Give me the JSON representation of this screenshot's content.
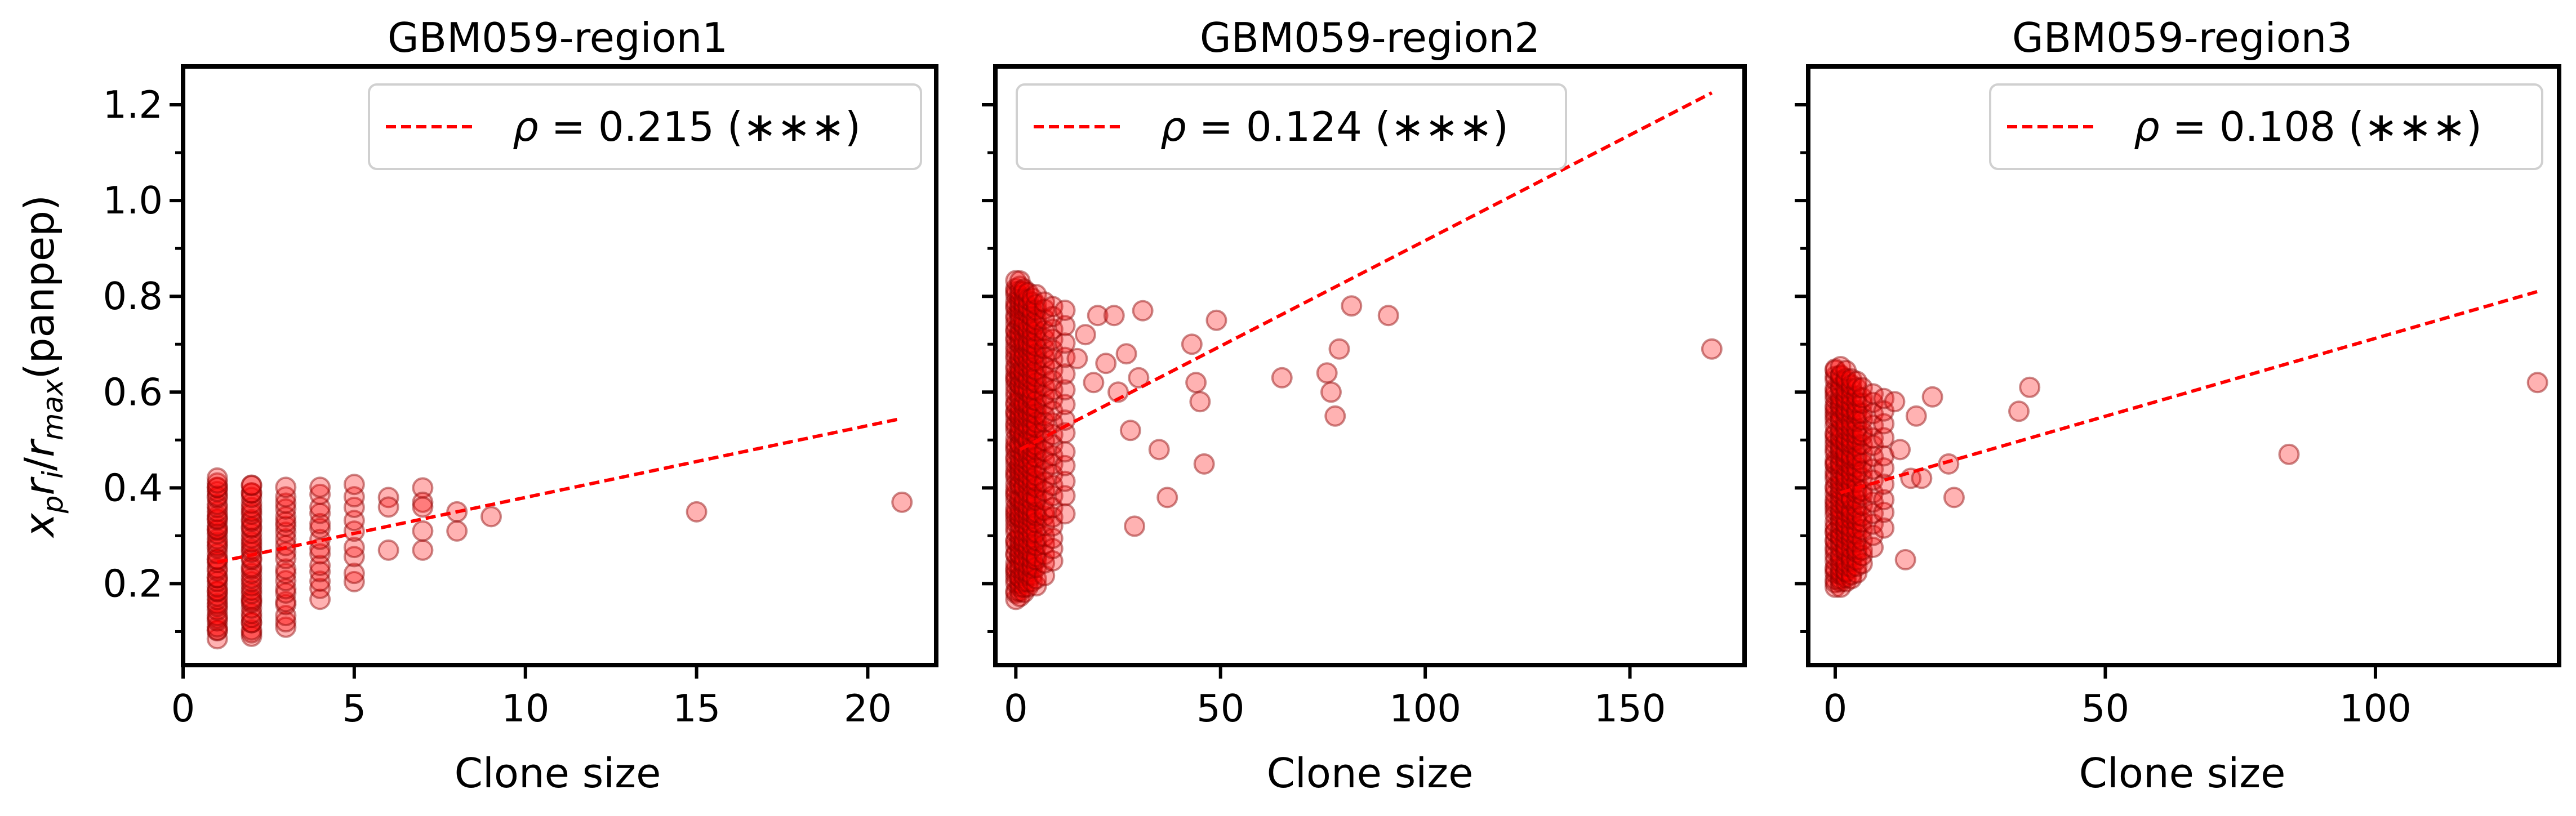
{
  "chart_data": [
    {
      "type": "scatter",
      "title": "GBM059-region1",
      "xlabel": "Clone size",
      "ylabel": "x_p r_i / r_max (panpep)",
      "xlim": [
        0,
        22
      ],
      "ylim": [
        0.03,
        1.28
      ],
      "xticks": [
        0,
        5,
        10,
        15,
        20
      ],
      "xtick_labels": [
        "0",
        "5",
        "10",
        "15",
        "20"
      ],
      "yticks": [
        0.2,
        0.4,
        0.6,
        0.8,
        1.0,
        1.2
      ],
      "ytick_labels": [
        "0.2",
        "0.4",
        "0.6",
        "0.8",
        "1.0",
        "1.2"
      ],
      "color": "#ff0000",
      "legend": {
        "position": "top-right",
        "rho": "0.215",
        "significance": "(∗∗∗)"
      },
      "fit_line": {
        "x": [
          1,
          21
        ],
        "y": [
          0.245,
          0.545
        ]
      },
      "columns": [
        {
          "x": 1,
          "ymin": 0.09,
          "ymax": 0.42,
          "n": 45
        },
        {
          "x": 2,
          "ymin": 0.09,
          "ymax": 0.41,
          "n": 40
        },
        {
          "x": 3,
          "ymin": 0.11,
          "ymax": 0.4,
          "n": 22
        },
        {
          "x": 4,
          "ymin": 0.17,
          "ymax": 0.4,
          "n": 14
        },
        {
          "x": 5,
          "ymin": 0.2,
          "ymax": 0.41,
          "n": 9
        }
      ],
      "points": [
        {
          "x": 6,
          "y": 0.38
        },
        {
          "x": 6,
          "y": 0.36
        },
        {
          "x": 6,
          "y": 0.27
        },
        {
          "x": 7,
          "y": 0.4
        },
        {
          "x": 7,
          "y": 0.37
        },
        {
          "x": 7,
          "y": 0.36
        },
        {
          "x": 7,
          "y": 0.31
        },
        {
          "x": 7,
          "y": 0.27
        },
        {
          "x": 8,
          "y": 0.35
        },
        {
          "x": 8,
          "y": 0.31
        },
        {
          "x": 9,
          "y": 0.34
        },
        {
          "x": 15,
          "y": 0.35
        },
        {
          "x": 21,
          "y": 0.37
        }
      ]
    },
    {
      "type": "scatter",
      "title": "GBM059-region2",
      "xlabel": "Clone size",
      "xlim": [
        -5,
        178
      ],
      "ylim": [
        0.03,
        1.28
      ],
      "xticks": [
        0,
        50,
        100,
        150
      ],
      "xtick_labels": [
        "0",
        "50",
        "100",
        "150"
      ],
      "yticks": [
        0.2,
        0.4,
        0.6,
        0.8,
        1.0,
        1.2
      ],
      "color": "#ff0000",
      "legend": {
        "position": "top-left",
        "rho": "0.124",
        "significance": "(∗∗∗)"
      },
      "fit_line": {
        "x": [
          1,
          170
        ],
        "y": [
          0.48,
          1.225
        ]
      },
      "columns": [
        {
          "x": 0,
          "ymin": 0.17,
          "ymax": 0.83,
          "n": 70
        },
        {
          "x": 1,
          "ymin": 0.17,
          "ymax": 0.83,
          "n": 70
        },
        {
          "x": 2,
          "ymin": 0.18,
          "ymax": 0.82,
          "n": 60
        },
        {
          "x": 3,
          "ymin": 0.19,
          "ymax": 0.81,
          "n": 50
        },
        {
          "x": 4,
          "ymin": 0.2,
          "ymax": 0.8,
          "n": 45
        },
        {
          "x": 5,
          "ymin": 0.2,
          "ymax": 0.8,
          "n": 40
        },
        {
          "x": 7,
          "ymin": 0.22,
          "ymax": 0.79,
          "n": 30
        },
        {
          "x": 9,
          "ymin": 0.25,
          "ymax": 0.78,
          "n": 25
        },
        {
          "x": 12,
          "ymin": 0.35,
          "ymax": 0.77,
          "n": 14
        }
      ],
      "points": [
        {
          "x": 15,
          "y": 0.67
        },
        {
          "x": 17,
          "y": 0.72
        },
        {
          "x": 19,
          "y": 0.62
        },
        {
          "x": 20,
          "y": 0.76
        },
        {
          "x": 22,
          "y": 0.66
        },
        {
          "x": 24,
          "y": 0.76
        },
        {
          "x": 25,
          "y": 0.6
        },
        {
          "x": 27,
          "y": 0.68
        },
        {
          "x": 28,
          "y": 0.52
        },
        {
          "x": 29,
          "y": 0.32
        },
        {
          "x": 30,
          "y": 0.63
        },
        {
          "x": 31,
          "y": 0.77
        },
        {
          "x": 35,
          "y": 0.48
        },
        {
          "x": 37,
          "y": 0.38
        },
        {
          "x": 43,
          "y": 0.7
        },
        {
          "x": 44,
          "y": 0.62
        },
        {
          "x": 45,
          "y": 0.58
        },
        {
          "x": 46,
          "y": 0.45
        },
        {
          "x": 49,
          "y": 0.75
        },
        {
          "x": 65,
          "y": 0.63
        },
        {
          "x": 76,
          "y": 0.64
        },
        {
          "x": 77,
          "y": 0.6
        },
        {
          "x": 78,
          "y": 0.55
        },
        {
          "x": 79,
          "y": 0.69
        },
        {
          "x": 82,
          "y": 0.78
        },
        {
          "x": 91,
          "y": 0.76
        },
        {
          "x": 170,
          "y": 0.69
        }
      ]
    },
    {
      "type": "scatter",
      "title": "GBM059-region3",
      "xlabel": "Clone size",
      "xlim": [
        -5,
        134
      ],
      "ylim": [
        0.03,
        1.28
      ],
      "xticks": [
        0,
        50,
        100
      ],
      "xtick_labels": [
        "0",
        "50",
        "100"
      ],
      "yticks": [
        0.2,
        0.4,
        0.6,
        0.8,
        1.0,
        1.2
      ],
      "color": "#ff0000",
      "legend": {
        "position": "top-right",
        "rho": "0.108",
        "significance": "(∗∗∗)"
      },
      "fit_line": {
        "x": [
          1,
          130
        ],
        "y": [
          0.39,
          0.81
        ]
      },
      "columns": [
        {
          "x": 0,
          "ymin": 0.19,
          "ymax": 0.65,
          "n": 50
        },
        {
          "x": 1,
          "ymin": 0.19,
          "ymax": 0.65,
          "n": 50
        },
        {
          "x": 2,
          "ymin": 0.2,
          "ymax": 0.64,
          "n": 45
        },
        {
          "x": 3,
          "ymin": 0.21,
          "ymax": 0.63,
          "n": 35
        },
        {
          "x": 4,
          "ymin": 0.22,
          "ymax": 0.62,
          "n": 30
        },
        {
          "x": 5,
          "ymin": 0.24,
          "ymax": 0.61,
          "n": 22
        },
        {
          "x": 7,
          "ymin": 0.28,
          "ymax": 0.6,
          "n": 15
        },
        {
          "x": 9,
          "ymin": 0.32,
          "ymax": 0.59,
          "n": 10
        }
      ],
      "points": [
        {
          "x": 11,
          "y": 0.58
        },
        {
          "x": 12,
          "y": 0.48
        },
        {
          "x": 13,
          "y": 0.25
        },
        {
          "x": 14,
          "y": 0.42
        },
        {
          "x": 15,
          "y": 0.55
        },
        {
          "x": 16,
          "y": 0.42
        },
        {
          "x": 18,
          "y": 0.59
        },
        {
          "x": 21,
          "y": 0.45
        },
        {
          "x": 22,
          "y": 0.38
        },
        {
          "x": 34,
          "y": 0.56
        },
        {
          "x": 36,
          "y": 0.61
        },
        {
          "x": 84,
          "y": 0.47
        },
        {
          "x": 130,
          "y": 0.62
        }
      ]
    }
  ]
}
